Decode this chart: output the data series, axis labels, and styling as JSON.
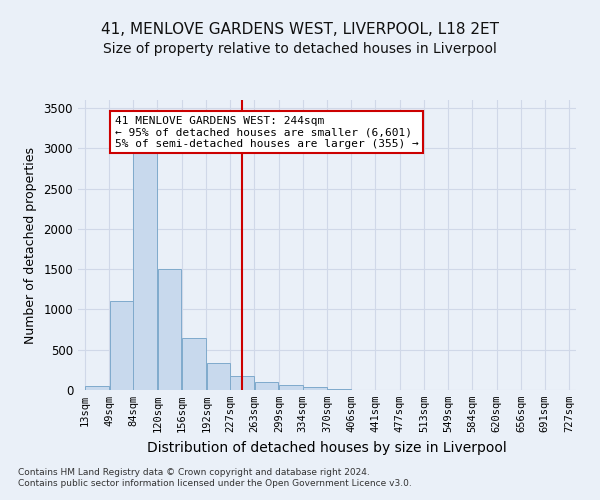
{
  "title": "41, MENLOVE GARDENS WEST, LIVERPOOL, L18 2ET",
  "subtitle": "Size of property relative to detached houses in Liverpool",
  "xlabel": "Distribution of detached houses by size in Liverpool",
  "ylabel": "Number of detached properties",
  "bar_left_edges": [
    13,
    49,
    84,
    120,
    156,
    192,
    227,
    263,
    299,
    334,
    370,
    406,
    441,
    477,
    513,
    549,
    584,
    620,
    656,
    691
  ],
  "bar_heights": [
    50,
    1100,
    3050,
    1500,
    650,
    330,
    180,
    95,
    60,
    40,
    15,
    5,
    5,
    5,
    0,
    0,
    0,
    0,
    0,
    0
  ],
  "bin_width": 36,
  "bar_color": "#c8d9ed",
  "bar_edge_color": "#7faacc",
  "tick_labels": [
    "13sqm",
    "49sqm",
    "84sqm",
    "120sqm",
    "156sqm",
    "192sqm",
    "227sqm",
    "263sqm",
    "299sqm",
    "334sqm",
    "370sqm",
    "406sqm",
    "441sqm",
    "477sqm",
    "513sqm",
    "549sqm",
    "584sqm",
    "620sqm",
    "656sqm",
    "691sqm",
    "727sqm"
  ],
  "tick_positions": [
    13,
    49,
    84,
    120,
    156,
    192,
    227,
    263,
    299,
    334,
    370,
    406,
    441,
    477,
    513,
    549,
    584,
    620,
    656,
    691,
    727
  ],
  "red_line_x": 244,
  "red_line_color": "#cc0000",
  "ylim": [
    0,
    3600
  ],
  "yticks": [
    0,
    500,
    1000,
    1500,
    2000,
    2500,
    3000,
    3500
  ],
  "annotation_text": "41 MENLOVE GARDENS WEST: 244sqm\n← 95% of detached houses are smaller (6,601)\n5% of semi-detached houses are larger (355) →",
  "annotation_box_color": "#ffffff",
  "annotation_box_edge": "#cc0000",
  "bg_color": "#eaf0f8",
  "plot_bg_color": "#eaf0f8",
  "grid_color": "#d0d8e8",
  "footer_line1": "Contains HM Land Registry data © Crown copyright and database right 2024.",
  "footer_line2": "Contains public sector information licensed under the Open Government Licence v3.0.",
  "title_fontsize": 11,
  "subtitle_fontsize": 10,
  "xlabel_fontsize": 10,
  "ylabel_fontsize": 9,
  "annotation_fontsize": 8
}
